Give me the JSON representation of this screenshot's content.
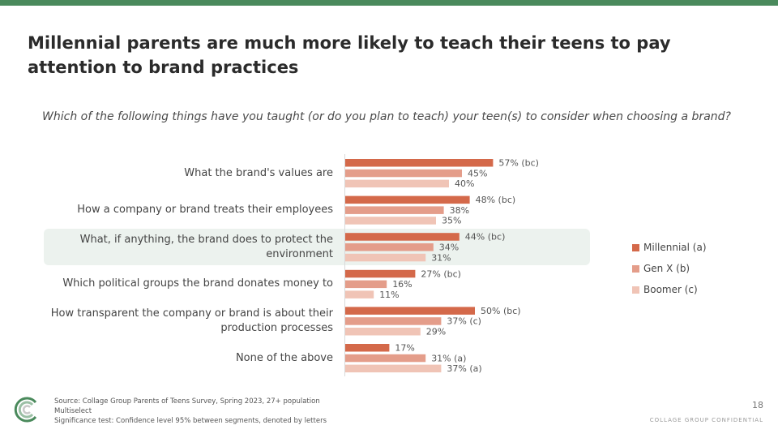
{
  "header": {
    "title": "Millennial parents are much more likely to teach their teens to pay attention to brand practices"
  },
  "question": "Which of the following things have you taught (or do you plan to teach) your teen(s) to consider when choosing a brand?",
  "chart_data": {
    "type": "bar",
    "orientation": "horizontal",
    "categories": [
      "What the brand's values are",
      "How a company or brand treats their employees",
      "What, if anything, the brand does to protect the environment",
      "Which political groups the brand donates money to",
      "How transparent the company or brand is about their production processes",
      "None of the above"
    ],
    "highlighted_category_index": 2,
    "series": [
      {
        "name": "Millennial (a)",
        "color": "#d4694a",
        "values": [
          57,
          48,
          44,
          27,
          50,
          17
        ],
        "labels": [
          "57% (bc)",
          "48% (bc)",
          "44% (bc)",
          "27% (bc)",
          "50% (bc)",
          "17%"
        ]
      },
      {
        "name": "Gen X (b)",
        "color": "#e49d8a",
        "values": [
          45,
          38,
          34,
          16,
          37,
          31
        ],
        "labels": [
          "45%",
          "38%",
          "34%",
          "16%",
          "37% (c)",
          "31% (a)"
        ]
      },
      {
        "name": "Boomer (c)",
        "color": "#f0c4b6",
        "values": [
          40,
          35,
          31,
          11,
          29,
          37
        ],
        "labels": [
          "40%",
          "35%",
          "31%",
          "11%",
          "29%",
          "37% (a)"
        ]
      }
    ],
    "xlim": [
      0,
      100
    ],
    "legend_position": "right",
    "grid": false
  },
  "footer": {
    "source": "Source: Collage Group Parents of Teens Survey, Spring 2023,  27+ population",
    "multiselect": "Multiselect",
    "significance": "Significance test: Confidence level 95% between segments, denoted by letters",
    "page_number": "18",
    "confidential": "COLLAGE GROUP CONFIDENTIAL"
  },
  "logo": {
    "icon": "collage-group-logo-icon"
  }
}
